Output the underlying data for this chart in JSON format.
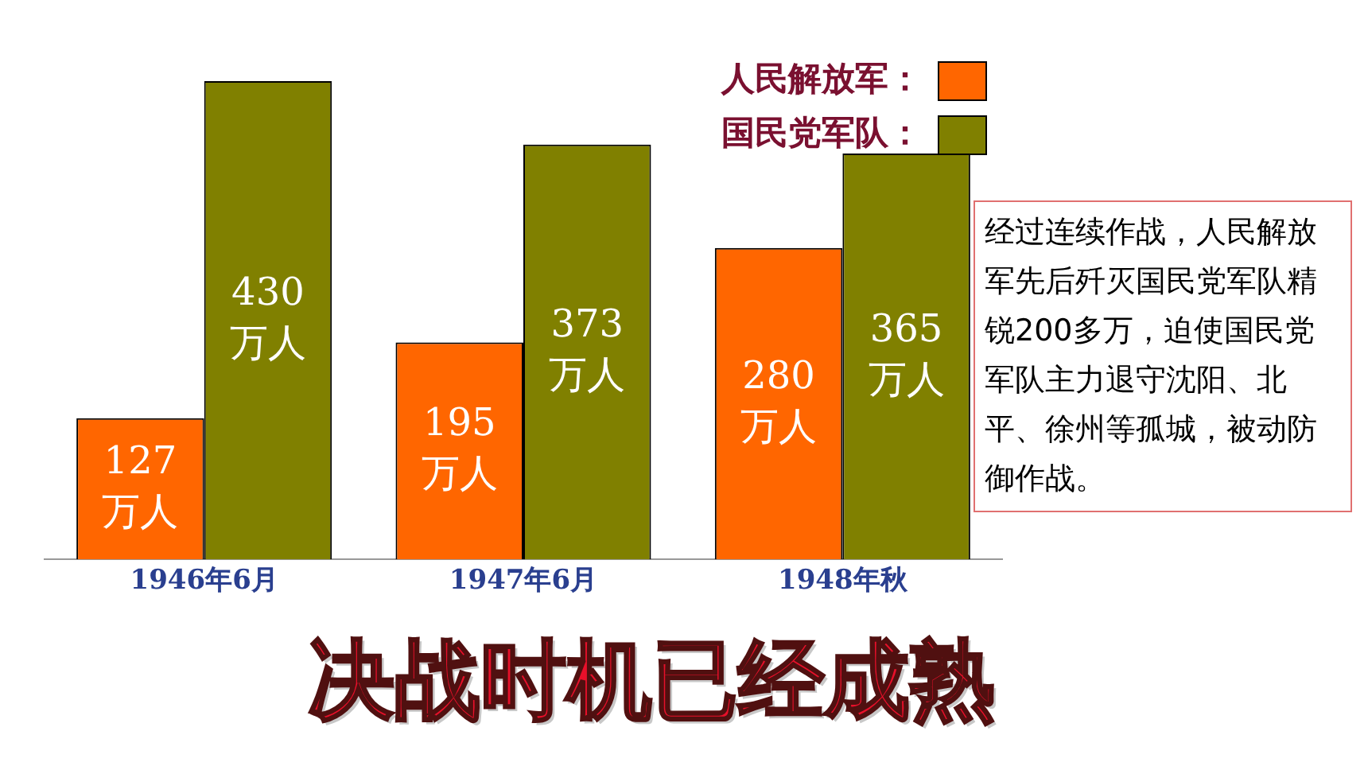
{
  "chart_data": {
    "type": "bar",
    "title": "决战时机已经成熟",
    "categories": [
      "1946年6月",
      "1947年6月",
      "1948年秋"
    ],
    "series": [
      {
        "name": "人民解放军：",
        "color": "#ff6600",
        "values": [
          127,
          195,
          280
        ],
        "value_labels": [
          "127\n万人",
          "195\n万人",
          "280\n万人"
        ]
      },
      {
        "name": "国民党军队：",
        "color": "#808000",
        "values": [
          430,
          373,
          365
        ],
        "value_labels": [
          "430\n万人",
          "373\n万人",
          "365\n万人"
        ]
      }
    ],
    "ylim": [
      0,
      430
    ],
    "tick_labels": "x",
    "grid": false,
    "legend": "top right",
    "annotations": [
      "经过连续作战，人民解放军先后歼灭国民党军队精锐200多万，迫使国民党军队主力退守沈阳、北平、徐州等孤城，被动防御作战。"
    ]
  }
}
